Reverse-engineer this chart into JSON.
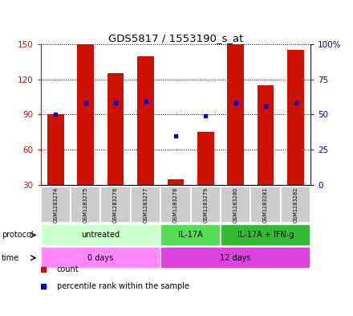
{
  "title": "GDS5817 / 1553190_s_at",
  "samples": [
    "GSM1283274",
    "GSM1283275",
    "GSM1283276",
    "GSM1283277",
    "GSM1283278",
    "GSM1283279",
    "GSM1283280",
    "GSM1283281",
    "GSM1283282"
  ],
  "bar_heights": [
    90,
    150,
    125,
    140,
    35,
    75,
    150,
    115,
    145
  ],
  "blue_dot_y": [
    90,
    100,
    100,
    101,
    72,
    89,
    100,
    97,
    100
  ],
  "ylim_left": [
    30,
    150
  ],
  "ylim_right": [
    0,
    100
  ],
  "y_ticks_left": [
    30,
    60,
    90,
    120,
    150
  ],
  "y_ticks_right": [
    0,
    25,
    50,
    75,
    100
  ],
  "y_ticks_right_labels": [
    "0",
    "25",
    "50",
    "75",
    "100%"
  ],
  "protocol_groups": [
    {
      "label": "untreated",
      "start": 0,
      "end": 4,
      "color": "#ccffcc"
    },
    {
      "label": "IL-17A",
      "start": 4,
      "end": 6,
      "color": "#55dd55"
    },
    {
      "label": "IL-17A + IFN-g",
      "start": 6,
      "end": 9,
      "color": "#33bb33"
    }
  ],
  "time_groups": [
    {
      "label": "0 days",
      "start": 0,
      "end": 4,
      "color": "#ff88ff"
    },
    {
      "label": "12 days",
      "start": 4,
      "end": 9,
      "color": "#dd44dd"
    }
  ],
  "bar_color": "#cc1100",
  "dot_color": "#0000cc",
  "sample_bg_color": "#cccccc",
  "left_axis_color": "#cc1100",
  "right_axis_color": "#0000bb",
  "fig_bg": "#ffffff"
}
